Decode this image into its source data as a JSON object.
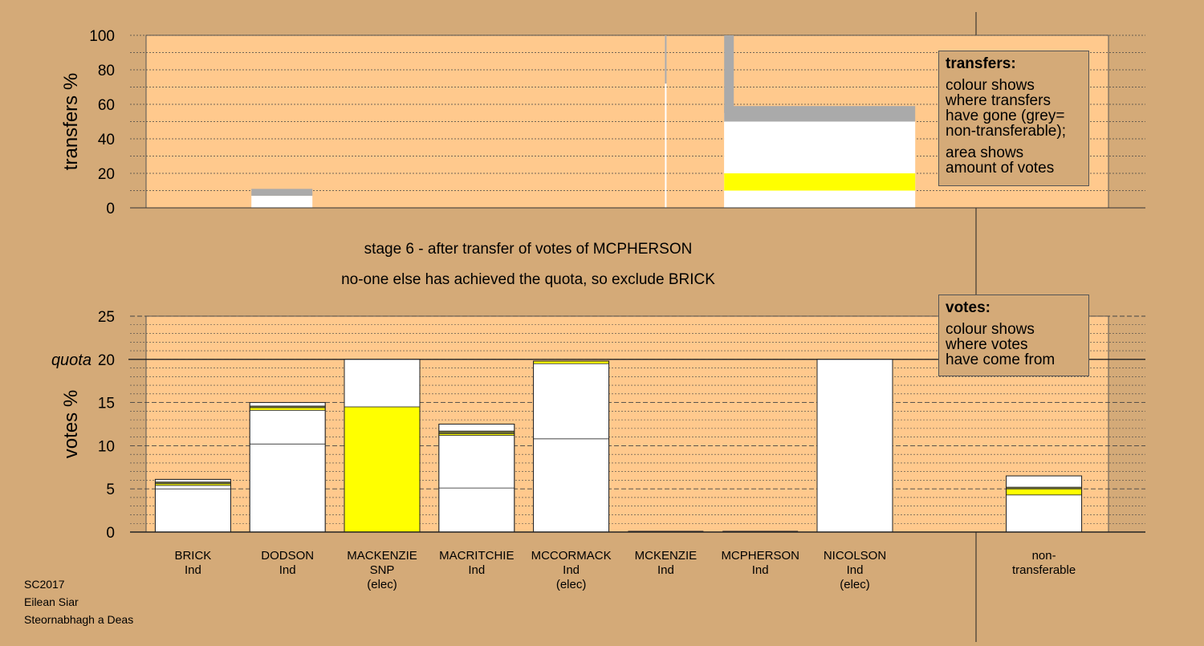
{
  "page": {
    "stage_line": "stage 6 - after transfer of votes of MCPHERSON",
    "action_line": "no-one else has achieved the quota, so exclude BRICK",
    "footer": [
      "SC2017",
      "Eilean Siar",
      "Steornabhagh a Deas"
    ]
  },
  "legend": {
    "transfers": {
      "title": "transfers:",
      "line1": "colour shows\nwhere transfers\nhave gone (grey=\nnon-transferable);",
      "line2": "area shows\namount of votes"
    },
    "votes": {
      "title": "votes:",
      "line1": "colour shows\nwhere votes\nhave come from"
    }
  },
  "colors": {
    "background": "#d4aa78",
    "plot_area": "#ffc98d",
    "snp": "#ffff00",
    "ind": "#ffffff",
    "non_transferable": "#aaaaaa",
    "other": "#6b6b35"
  },
  "chart_data": [
    {
      "type": "bar",
      "name": "transfers",
      "ylabel": "transfers %",
      "ylim": [
        0,
        100
      ],
      "yticks": [
        0,
        20,
        40,
        60,
        80,
        100
      ],
      "grid": true,
      "categories": [
        "BRICK",
        "DODSON",
        "MACKENZIE",
        "MACRITCHIE",
        "MCCORMACK",
        "MCKENZIE",
        "MCPHERSON",
        "NICOLSON",
        "",
        "non-transferable"
      ],
      "blocks": [
        {
          "source": "DODSON",
          "pieces": [
            {
              "color": "ind",
              "bottom": 0,
              "top": 7
            },
            {
              "color": "non_transferable",
              "bottom": 7,
              "top": 11
            }
          ]
        },
        {
          "source": "MCKENZIE",
          "pieces": [
            {
              "color": "ind",
              "bottom": 0,
              "top": 100,
              "thin": true
            },
            {
              "color": "non_transferable",
              "bottom": 72,
              "top": 100,
              "thin": true
            }
          ]
        },
        {
          "source": "MCPHERSON",
          "pieces": [
            {
              "color": "ind",
              "bottom": 0,
              "top": 55,
              "narrow": true
            },
            {
              "color": "non_transferable",
              "bottom": 55,
              "top": 100,
              "narrow": true
            },
            {
              "color": "ind",
              "bottom": 0,
              "top": 50,
              "wide": true
            },
            {
              "color": "snp",
              "bottom": 10,
              "top": 20,
              "wide": true
            },
            {
              "color": "non_transferable",
              "bottom": 50,
              "top": 59,
              "wide": true
            }
          ]
        }
      ]
    },
    {
      "type": "bar",
      "name": "votes",
      "ylabel": "votes %",
      "ylim": [
        0,
        25
      ],
      "yticks": [
        0,
        5,
        10,
        15,
        20,
        25
      ],
      "quota": 20,
      "quota_label": "quota",
      "grid": true,
      "bars": [
        {
          "name": "BRICK",
          "party": "Ind",
          "status": "",
          "segments": [
            {
              "color": "ind",
              "value": 5.0
            },
            {
              "color": "ind",
              "value": 0.4
            },
            {
              "color": "snp",
              "value": 0.2
            },
            {
              "color": "other",
              "value": 0.2
            },
            {
              "color": "ind",
              "value": 0.3
            }
          ]
        },
        {
          "name": "DODSON",
          "party": "Ind",
          "status": "",
          "segments": [
            {
              "color": "ind",
              "value": 10.2
            },
            {
              "color": "ind",
              "value": 3.9
            },
            {
              "color": "snp",
              "value": 0.3
            },
            {
              "color": "other",
              "value": 0.2
            },
            {
              "color": "ind",
              "value": 0.4
            }
          ]
        },
        {
          "name": "MACKENZIE",
          "party": "SNP",
          "status": "(elec)",
          "segments": [
            {
              "color": "snp",
              "value": 14.5
            },
            {
              "color": "ind",
              "value": 5.5
            }
          ]
        },
        {
          "name": "MACRITCHIE",
          "party": "Ind",
          "status": "",
          "segments": [
            {
              "color": "ind",
              "value": 5.1
            },
            {
              "color": "ind",
              "value": 6.1
            },
            {
              "color": "snp",
              "value": 0.2
            },
            {
              "color": "other",
              "value": 0.3
            },
            {
              "color": "ind",
              "value": 0.8
            }
          ]
        },
        {
          "name": "MCCORMACK",
          "party": "Ind",
          "status": "(elec)",
          "segments": [
            {
              "color": "ind",
              "value": 10.8
            },
            {
              "color": "ind",
              "value": 8.7
            },
            {
              "color": "snp",
              "value": 0.3
            }
          ]
        },
        {
          "name": "MCKENZIE",
          "party": "Ind",
          "status": "",
          "segments": []
        },
        {
          "name": "MCPHERSON",
          "party": "Ind",
          "status": "",
          "segments": []
        },
        {
          "name": "NICOLSON",
          "party": "Ind",
          "status": "(elec)",
          "segments": [
            {
              "color": "ind",
              "value": 20.0
            }
          ]
        },
        {
          "name": "",
          "party": "",
          "status": "",
          "segments": []
        },
        {
          "name": "non-",
          "party": "transferable",
          "status": "",
          "segments": [
            {
              "color": "ind",
              "value": 4.3
            },
            {
              "color": "snp",
              "value": 0.7
            },
            {
              "color": "other",
              "value": 0.2
            },
            {
              "color": "ind",
              "value": 1.3
            }
          ]
        }
      ]
    }
  ]
}
